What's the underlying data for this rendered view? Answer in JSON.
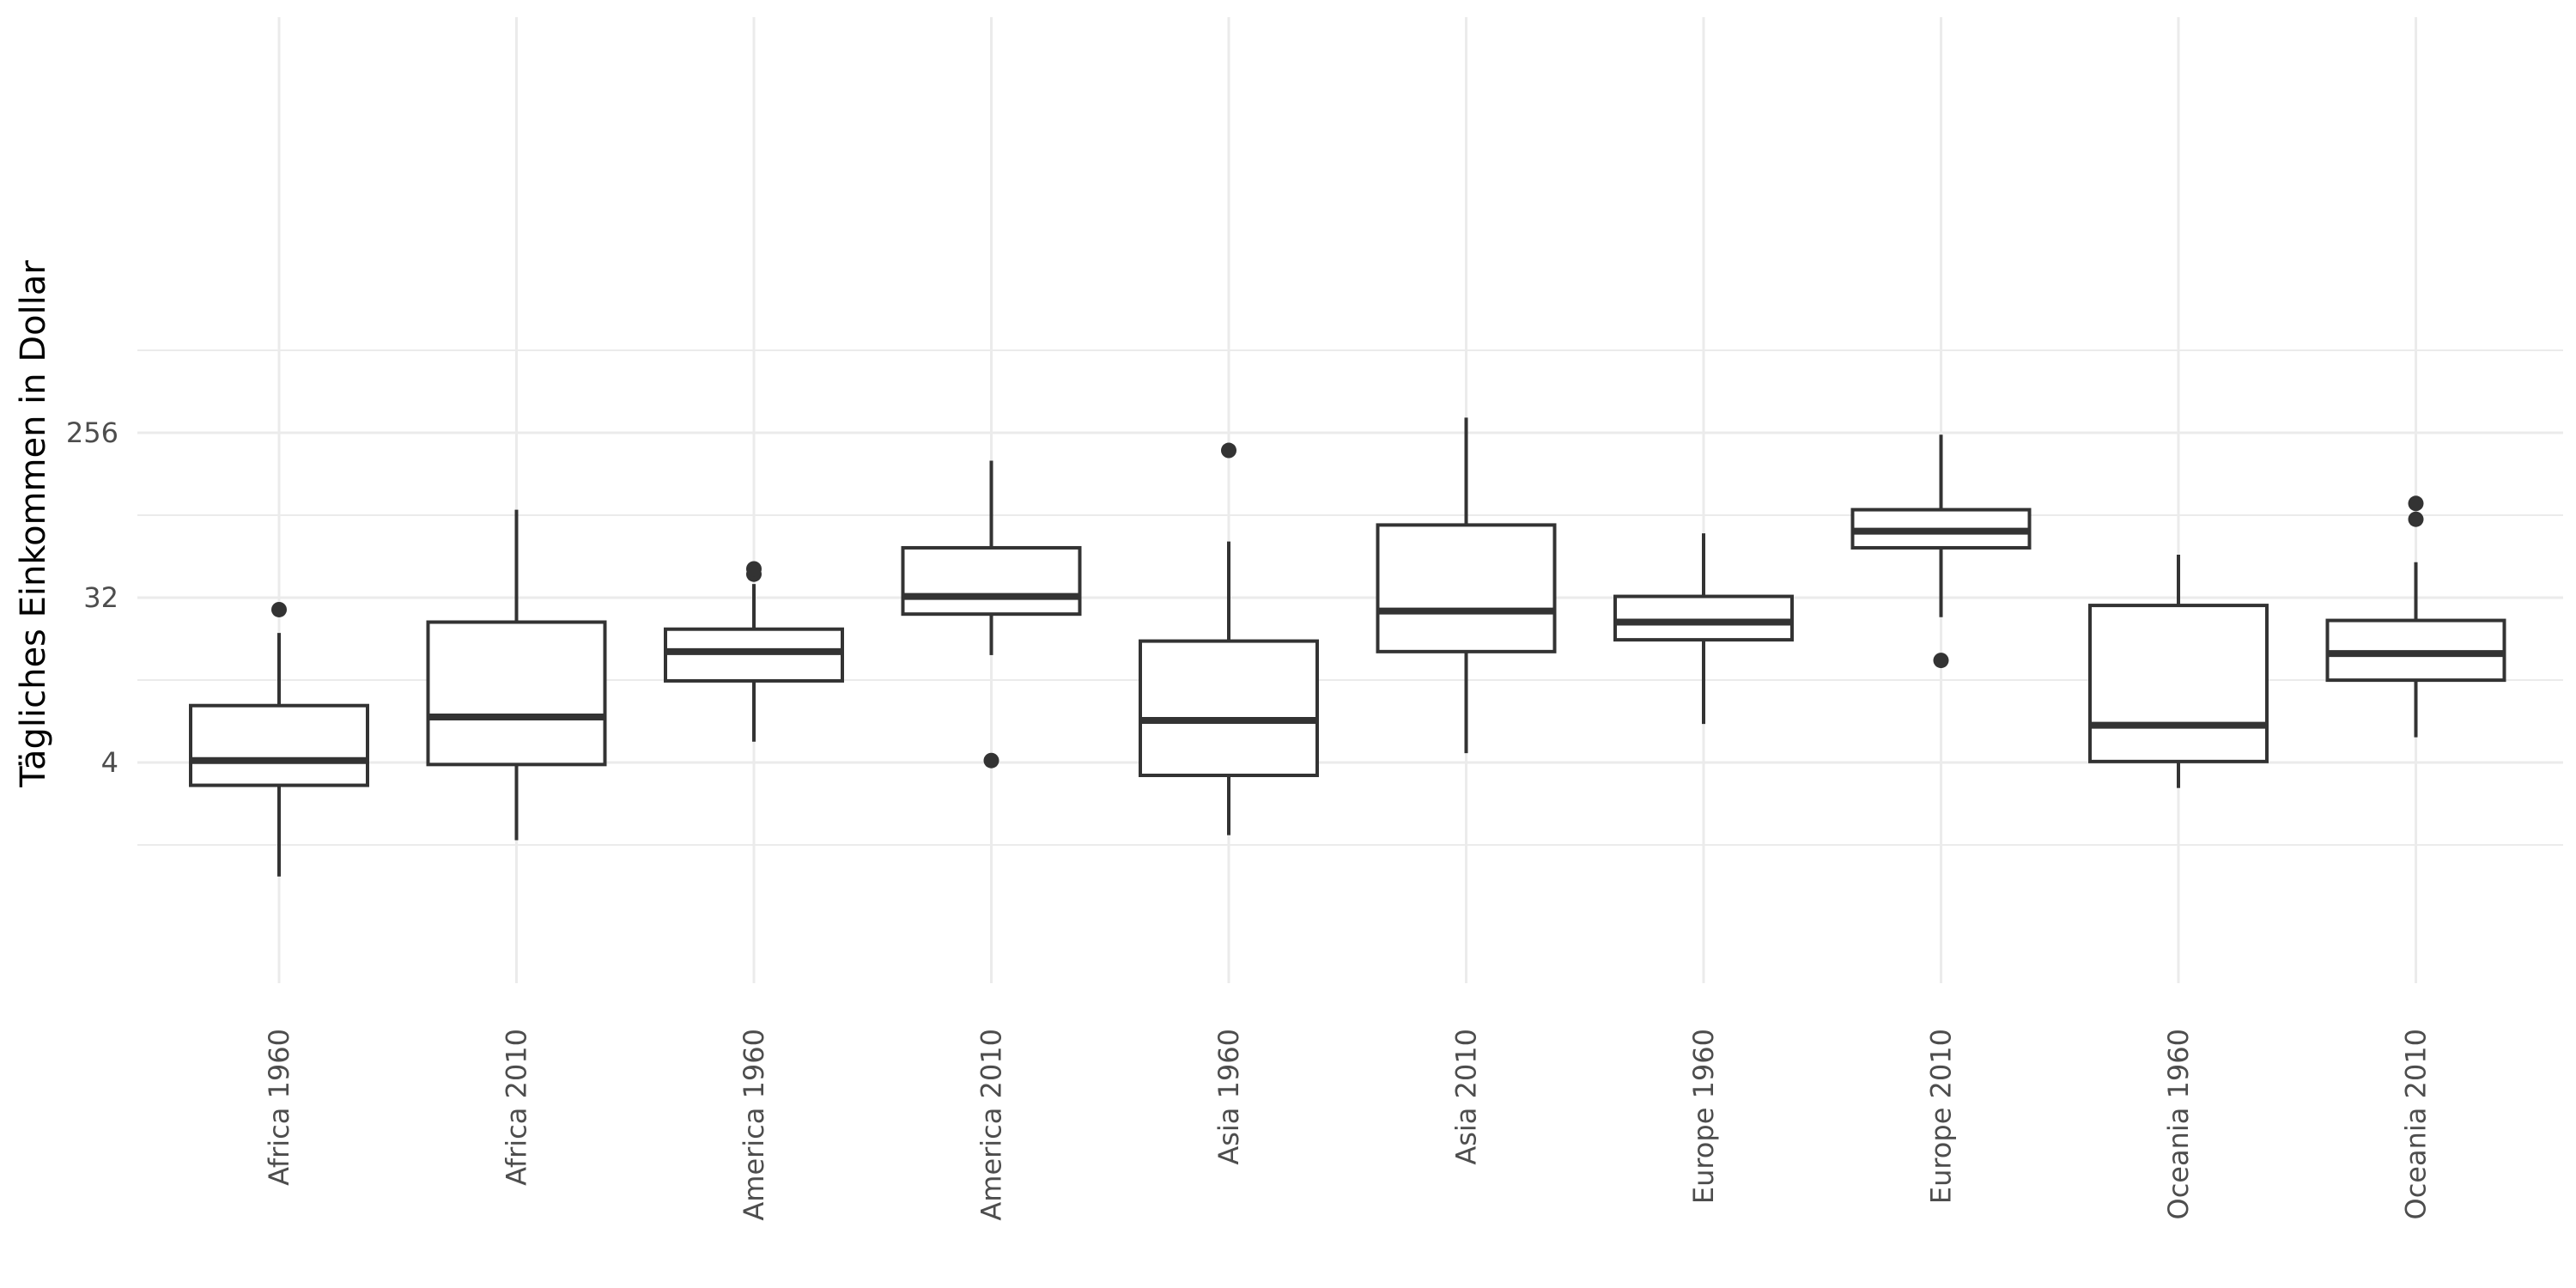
{
  "chart_data": {
    "type": "boxplot",
    "title": "",
    "xlabel": "",
    "ylabel": "Tägliches Einkommen in Dollar",
    "y_scale": "log2",
    "y_ticks": [
      4,
      32,
      256
    ],
    "y_tick_labels": [
      "4",
      "32",
      "256"
    ],
    "ylim": [
      0.9,
      400
    ],
    "grid": true,
    "colors": {
      "box": "#333333",
      "grid": "#ebebeb",
      "tick_text": "#4d4d4d",
      "axis_title": "#000000"
    },
    "categories": [
      "Africa 1960",
      "Africa 2010",
      "America 1960",
      "America 2010",
      "Asia 1960",
      "Asia 2010",
      "Europe 1960",
      "Europe 2010",
      "Oceania 1960",
      "Oceania 2010"
    ],
    "boxes": [
      {
        "category": "Africa 1960",
        "whisker_low": 0.95,
        "q1": 3.0,
        "median": 4.1,
        "q3": 8.2,
        "whisker_high": 20.5,
        "outliers": [
          27.5
        ]
      },
      {
        "category": "Africa 2010",
        "whisker_low": 1.5,
        "q1": 3.9,
        "median": 7.1,
        "q3": 23.5,
        "whisker_high": 97,
        "outliers": []
      },
      {
        "category": "America 1960",
        "whisker_low": 5.2,
        "q1": 11.2,
        "median": 16.2,
        "q3": 21.5,
        "whisker_high": 38,
        "outliers": [
          43,
          46
        ]
      },
      {
        "category": "America 2010",
        "whisker_low": 15.5,
        "q1": 26,
        "median": 32.5,
        "q3": 60,
        "whisker_high": 180,
        "outliers": [
          4.1
        ]
      },
      {
        "category": "Asia 1960",
        "whisker_low": 1.6,
        "q1": 3.4,
        "median": 6.8,
        "q3": 18.5,
        "whisker_high": 65,
        "outliers": [
          205
        ]
      },
      {
        "category": "Asia 2010",
        "whisker_low": 4.5,
        "q1": 16.2,
        "median": 27,
        "q3": 80,
        "whisker_high": 310,
        "outliers": []
      },
      {
        "category": "Europe 1960",
        "whisker_low": 6.5,
        "q1": 18.8,
        "median": 23.5,
        "q3": 32.5,
        "whisker_high": 72,
        "outliers": []
      },
      {
        "category": "Europe 2010",
        "whisker_low": 25,
        "q1": 60,
        "median": 74,
        "q3": 97,
        "whisker_high": 250,
        "outliers": [
          14.5
        ]
      },
      {
        "category": "Oceania 1960",
        "whisker_low": 2.9,
        "q1": 4.05,
        "median": 6.4,
        "q3": 29,
        "whisker_high": 55,
        "outliers": []
      },
      {
        "category": "Oceania 2010",
        "whisker_low": 5.5,
        "q1": 11.3,
        "median": 15.8,
        "q3": 24,
        "whisker_high": 50,
        "outliers": [
          86,
          105
        ]
      }
    ]
  }
}
